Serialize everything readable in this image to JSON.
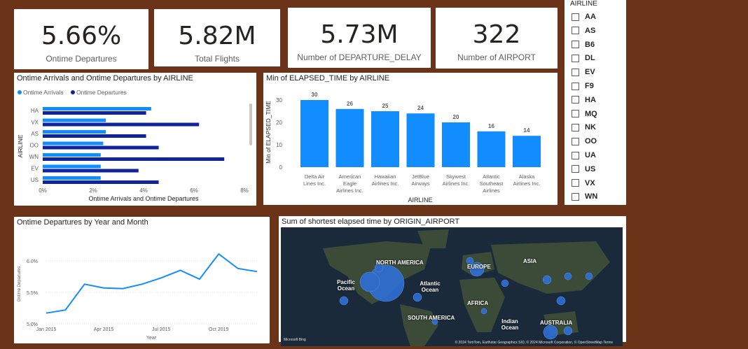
{
  "kpis": [
    {
      "value": "5.66%",
      "label": "Ontime Departures"
    },
    {
      "value": "5.82M",
      "label": "Total Flights"
    },
    {
      "value": "5.73M",
      "label": "Number of DEPARTURE_DELAY"
    },
    {
      "value": "322",
      "label": "Number of AIRPORT"
    }
  ],
  "slicer": {
    "title": "AIRLINE",
    "items": [
      "AA",
      "AS",
      "B6",
      "DL",
      "EV",
      "F9",
      "HA",
      "MQ",
      "NK",
      "OO",
      "UA",
      "US",
      "VX",
      "WN"
    ]
  },
  "colors": {
    "arrivals": "#118dff",
    "departures": "#12239e",
    "page_bg": "#6b3418",
    "line": "#118dff"
  },
  "chart_data": [
    {
      "type": "bar",
      "orientation": "horizontal",
      "title": "Ontime Arrivals and Ontime Departures by AIRLINE",
      "xlabel": "Ontime Arrivals and Ontime Departures",
      "ylabel": "AIRLINE",
      "categories": [
        "HA",
        "VX",
        "AS",
        "OO",
        "WN",
        "EV",
        "US"
      ],
      "series": [
        {
          "name": "Ontime Arrivals",
          "values": [
            4.3,
            2.5,
            2.5,
            2.4,
            2.3,
            2.3,
            2.3
          ]
        },
        {
          "name": "Ontime Departures",
          "values": [
            4.1,
            6.2,
            4.1,
            4.6,
            7.2,
            3.8,
            4.6
          ]
        }
      ],
      "xlim": [
        0,
        8
      ],
      "xticks": [
        "0%",
        "2%",
        "4%",
        "6%",
        "8%"
      ],
      "legend": "top-left"
    },
    {
      "type": "bar",
      "title": "Min of ELAPSED_TIME by AIRLINE",
      "xlabel": "AIRLINE",
      "ylabel": "Min of ELAPSED_TIME",
      "categories": [
        "Delta Air Lines Inc.",
        "American Eagle Airlines Inc.",
        "Hawaiian Airlines Inc.",
        "JetBlue Airways",
        "Skywest Airlines Inc.",
        "Atlantic Southeast Airlines",
        "Alaska Airlines Inc."
      ],
      "category_lines": [
        [
          "Delta Air",
          "Lines Inc."
        ],
        [
          "American",
          "Eagle",
          "Airlines Inc."
        ],
        [
          "Hawaiian",
          "Airlines Inc."
        ],
        [
          "JetBlue",
          "Airways"
        ],
        [
          "Skywest",
          "Airlines Inc."
        ],
        [
          "Atlantic",
          "Southeast",
          "Airlines"
        ],
        [
          "Alaska",
          "Airlines Inc."
        ]
      ],
      "values": [
        30,
        26,
        25,
        24,
        20,
        16,
        14
      ],
      "ylim": [
        0,
        30
      ],
      "yticks": [
        "0",
        "10",
        "20",
        "30"
      ]
    },
    {
      "type": "line",
      "title": "Ontime Departures by Year and Month",
      "xlabel": "Year",
      "ylabel": "Ontime Departures",
      "x": [
        "Jan 2015",
        "Feb 2015",
        "Mar 2015",
        "Apr 2015",
        "May 2015",
        "Jun 2015",
        "Jul 2015",
        "Aug 2015",
        "Sep 2015",
        "Oct 2015",
        "Nov 2015",
        "Dec 2015"
      ],
      "values": [
        5.17,
        5.22,
        5.63,
        5.57,
        5.56,
        5.63,
        5.73,
        5.85,
        5.71,
        6.11,
        5.88,
        5.83
      ],
      "ylim": [
        5.0,
        6.2
      ],
      "yticks": [
        "5.0%",
        "5.5%",
        "6.0%"
      ],
      "xticks": [
        "Jan 2015",
        "Apr 2015",
        "Jul 2015",
        "Oct 2015"
      ]
    }
  ],
  "map": {
    "title": "Sum of shortest elapsed time by ORIGIN_AIRPORT",
    "labels": [
      "NORTH AMERICA",
      "EUROPE",
      "ASIA",
      "Pacific Ocean",
      "Atlantic Ocean",
      "AFRICA",
      "SOUTH AMERICA",
      "Indian Ocean",
      "AUSTRALIA"
    ],
    "attribution": "© 2024 TomTom, Earthstar Geographics SIO, © 2024 Microsoft Corporation, © OpenStreetMap  Terms",
    "provider": "Microsoft Bing"
  }
}
